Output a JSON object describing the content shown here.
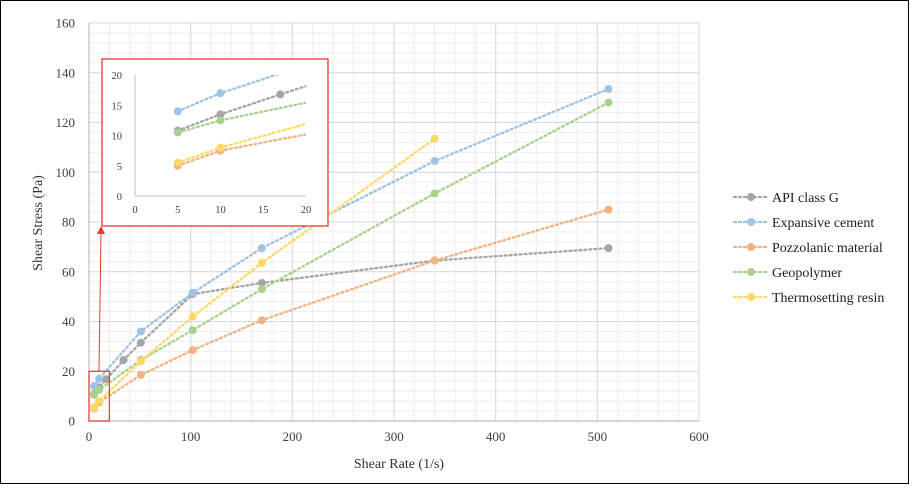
{
  "chart_data": [
    {
      "type": "line",
      "xlabel": "Shear Rate (1/s)",
      "ylabel": "Shear Stress (Pa)",
      "xlim": [
        0,
        600
      ],
      "ylim": [
        0,
        160
      ],
      "xticks": [
        0,
        100,
        200,
        300,
        400,
        500,
        600
      ],
      "yticks": [
        0,
        20,
        40,
        60,
        80,
        100,
        120,
        140,
        160
      ],
      "grid": true,
      "legend_position": "right",
      "series": [
        {
          "name": "API class G",
          "color": "#A5A5A5",
          "x": [
            5,
            10,
            17,
            34,
            51,
            102,
            170,
            340,
            511
          ],
          "y": [
            10.8,
            13.5,
            16.8,
            24.5,
            31.5,
            51,
            55.5,
            64.5,
            69.5
          ]
        },
        {
          "name": "Expansive cement",
          "color": "#9DC3E6",
          "x": [
            5,
            10,
            51,
            102,
            170,
            340,
            511
          ],
          "y": [
            14,
            17,
            36,
            51.5,
            69.5,
            104.5,
            133.5
          ]
        },
        {
          "name": "Pozzolanic material",
          "color": "#F4B183",
          "x": [
            5,
            10,
            51,
            102,
            170,
            340,
            511
          ],
          "y": [
            5,
            7.5,
            18.5,
            28.5,
            40.5,
            64.5,
            85
          ]
        },
        {
          "name": "Geopolymer",
          "color": "#A9D18E",
          "x": [
            5,
            10,
            51,
            102,
            170,
            340,
            511
          ],
          "y": [
            10.5,
            12.5,
            24.5,
            36.5,
            53,
            91.5,
            128
          ]
        },
        {
          "name": "Thermosetting resin",
          "color": "#FFD966",
          "x": [
            5,
            10,
            51,
            102,
            170,
            340
          ],
          "y": [
            5.5,
            8,
            24,
            42,
            63.5,
            113.5
          ]
        }
      ]
    },
    {
      "type": "line",
      "xlim": [
        0,
        20
      ],
      "ylim": [
        0,
        20
      ],
      "xticks": [
        0,
        5,
        10,
        15,
        20
      ],
      "yticks": [
        0,
        5,
        10,
        15,
        20
      ],
      "grid": false,
      "series": [
        {
          "name": "API class G",
          "color": "#A5A5A5",
          "x": [
            5,
            10,
            17
          ],
          "y": [
            10.8,
            13.5,
            16.8
          ]
        },
        {
          "name": "Expansive cement",
          "color": "#9DC3E6",
          "x": [
            5,
            10
          ],
          "y": [
            14,
            17
          ]
        },
        {
          "name": "Pozzolanic material",
          "color": "#F4B183",
          "x": [
            5,
            10
          ],
          "y": [
            5,
            7.5
          ]
        },
        {
          "name": "Geopolymer",
          "color": "#A9D18E",
          "x": [
            5,
            10
          ],
          "y": [
            10.5,
            12.5
          ]
        },
        {
          "name": "Thermosetting resin",
          "color": "#FFD966",
          "x": [
            5,
            10
          ],
          "y": [
            5.5,
            8
          ]
        }
      ]
    }
  ],
  "colors": {
    "zoom_box": "#E53935",
    "grid": "#D9D9D9",
    "axis": "#BFBFBF"
  }
}
